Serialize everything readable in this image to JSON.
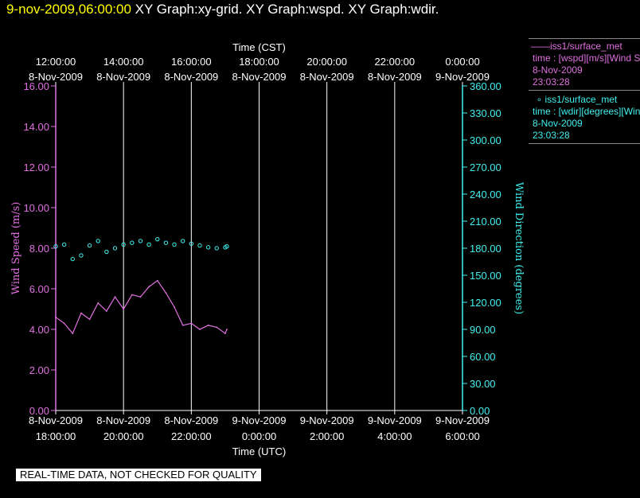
{
  "header": {
    "timestamp": "9-nov-2009,06:00:00",
    "graphs": "XY Graph:xy-grid.  XY Graph:wspd.  XY Graph:wdir."
  },
  "legend": {
    "wspd": {
      "source": "iss1/surface_met",
      "field": "time : [wspd][m/s][Wind Speed]",
      "date": "8-Nov-2009",
      "time": "23:03:28"
    },
    "wdir": {
      "source": "iss1/surface_met",
      "field": "time : [wdir][degrees][Wind Direction]",
      "date": "8-Nov-2009",
      "time": "23:03:28"
    }
  },
  "notice": "REAL-TIME DATA, NOT CHECKED FOR QUALITY",
  "colors": {
    "wspd": "#e070e0",
    "wdir": "#40f0f0",
    "grid": "#ffffff",
    "background": "#000000"
  },
  "chart_data": {
    "type": "line",
    "top_axis": {
      "label": "Time (CST)",
      "ticks": [
        [
          "12:00:00",
          "8-Nov-2009"
        ],
        [
          "14:00:00",
          "8-Nov-2009"
        ],
        [
          "16:00:00",
          "8-Nov-2009"
        ],
        [
          "18:00:00",
          "8-Nov-2009"
        ],
        [
          "20:00:00",
          "8-Nov-2009"
        ],
        [
          "22:00:00",
          "8-Nov-2009"
        ],
        [
          "0:00:00",
          "9-Nov-2009"
        ]
      ]
    },
    "bottom_axis": {
      "label": "Time (UTC)",
      "ticks": [
        [
          "8-Nov-2009",
          "18:00:00"
        ],
        [
          "8-Nov-2009",
          "20:00:00"
        ],
        [
          "8-Nov-2009",
          "22:00:00"
        ],
        [
          "9-Nov-2009",
          "0:00:00"
        ],
        [
          "9-Nov-2009",
          "2:00:00"
        ],
        [
          "9-Nov-2009",
          "4:00:00"
        ],
        [
          "9-Nov-2009",
          "6:00:00"
        ]
      ]
    },
    "x_range_hours_utc": [
      18,
      30
    ],
    "y_left": {
      "label": "Wind Speed (m/s)",
      "range": [
        0,
        16
      ],
      "ticks": [
        "0.00",
        "2.00",
        "4.00",
        "6.00",
        "8.00",
        "10.00",
        "12.00",
        "14.00",
        "16.00"
      ]
    },
    "y_right": {
      "label": "Wind Direction (degrees)",
      "range": [
        0,
        360
      ],
      "ticks": [
        "0.00",
        "30.00",
        "60.00",
        "90.00",
        "120.00",
        "150.00",
        "180.00",
        "210.00",
        "240.00",
        "270.00",
        "300.00",
        "330.00",
        "360.00"
      ]
    },
    "grid": true,
    "series": [
      {
        "name": "wspd",
        "axis": "left",
        "style": "line",
        "x_hours_utc": [
          18.0,
          18.25,
          18.5,
          18.75,
          19.0,
          19.25,
          19.5,
          19.75,
          20.0,
          20.25,
          20.5,
          20.75,
          21.0,
          21.25,
          21.5,
          21.75,
          22.0,
          22.25,
          22.5,
          22.75,
          23.0,
          23.05
        ],
        "values": [
          4.6,
          4.3,
          3.8,
          4.8,
          4.5,
          5.3,
          4.9,
          5.6,
          5.0,
          5.7,
          5.6,
          6.1,
          6.4,
          5.8,
          5.1,
          4.2,
          4.3,
          4.0,
          4.2,
          4.1,
          3.8,
          4.0
        ]
      },
      {
        "name": "wdir",
        "axis": "right",
        "style": "points",
        "x_hours_utc": [
          18.0,
          18.25,
          18.5,
          18.75,
          19.0,
          19.25,
          19.5,
          19.75,
          20.0,
          20.25,
          20.5,
          20.75,
          21.0,
          21.25,
          21.5,
          21.75,
          22.0,
          22.25,
          22.5,
          22.75,
          23.0,
          23.05
        ],
        "values": [
          182,
          184,
          168,
          172,
          183,
          188,
          176,
          180,
          184,
          186,
          188,
          184,
          190,
          186,
          184,
          188,
          185,
          183,
          181,
          180,
          181,
          182
        ]
      }
    ]
  }
}
